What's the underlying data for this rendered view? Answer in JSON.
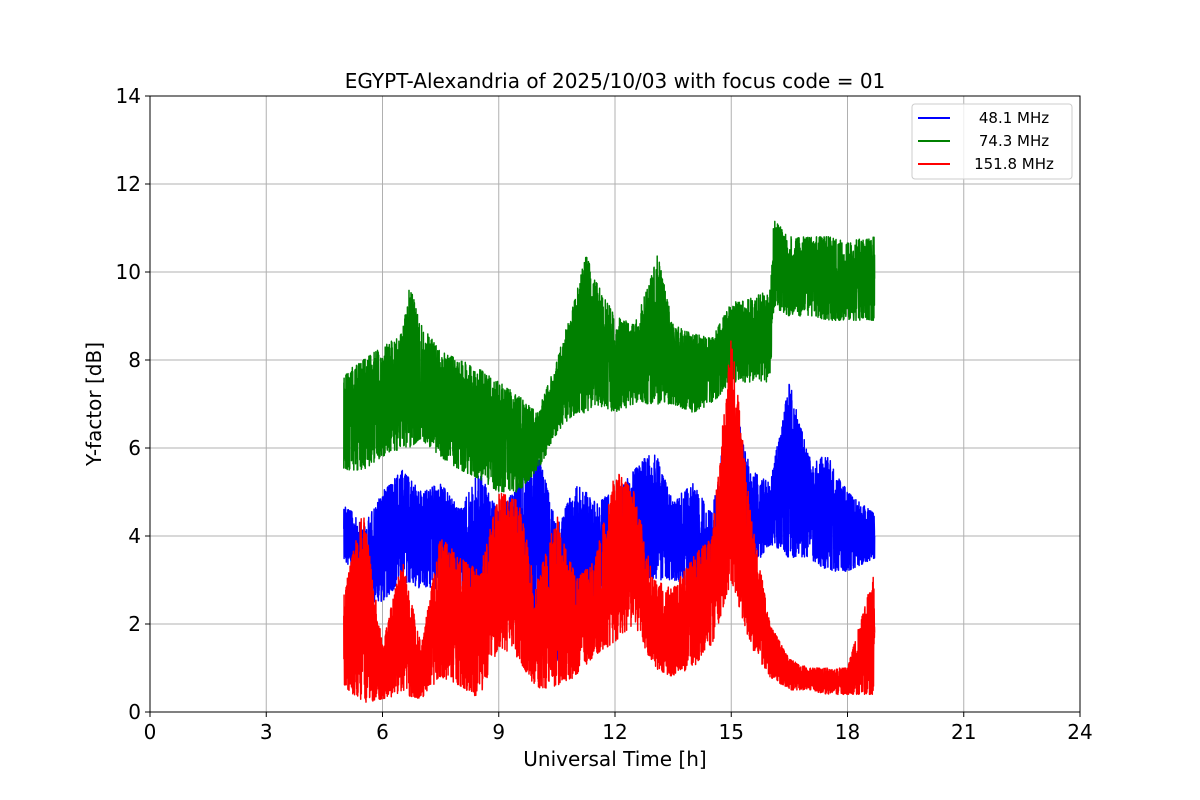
{
  "chart_data": {
    "type": "line",
    "title": "EGYPT-Alexandria of 2025/10/03 with focus code = 01",
    "xlabel": "Universal Time [h]",
    "ylabel": "Y-factor [dB]",
    "xlim": [
      0,
      24
    ],
    "ylim": [
      0,
      14
    ],
    "xticks": [
      "0",
      "3",
      "6",
      "9",
      "12",
      "15",
      "18",
      "21",
      "24"
    ],
    "yticks": [
      "0",
      "2",
      "4",
      "6",
      "8",
      "10",
      "12",
      "14"
    ],
    "grid": true,
    "legend_position": "top-right",
    "series": [
      {
        "name": "48.1 MHz",
        "color": "#0000ff",
        "envelope_t_low_high": [
          [
            5.0,
            3.5,
            4.8
          ],
          [
            5.5,
            2.5,
            4.2
          ],
          [
            6.0,
            2.5,
            5.0
          ],
          [
            6.5,
            3.0,
            5.5
          ],
          [
            7.0,
            2.8,
            5.0
          ],
          [
            7.5,
            2.8,
            5.2
          ],
          [
            8.0,
            2.5,
            4.6
          ],
          [
            8.5,
            1.5,
            5.5
          ],
          [
            9.0,
            2.0,
            4.5
          ],
          [
            9.5,
            2.2,
            5.2
          ],
          [
            10.0,
            1.8,
            6.0
          ],
          [
            10.5,
            1.0,
            4.2
          ],
          [
            11.0,
            2.0,
            5.2
          ],
          [
            11.5,
            2.5,
            4.8
          ],
          [
            12.0,
            2.8,
            5.0
          ],
          [
            12.5,
            3.0,
            5.5
          ],
          [
            13.0,
            3.0,
            6.0
          ],
          [
            13.5,
            3.0,
            4.8
          ],
          [
            14.0,
            2.8,
            5.2
          ],
          [
            14.5,
            3.0,
            4.5
          ],
          [
            15.0,
            3.5,
            7.3
          ],
          [
            15.5,
            3.2,
            5.5
          ],
          [
            16.0,
            3.8,
            5.2
          ],
          [
            16.5,
            3.5,
            7.5
          ],
          [
            17.0,
            3.5,
            5.8
          ],
          [
            17.5,
            3.2,
            5.8
          ],
          [
            18.0,
            3.2,
            5.0
          ],
          [
            18.7,
            3.5,
            4.5
          ]
        ]
      },
      {
        "name": "74.3 MHz",
        "color": "#008000",
        "envelope_t_low_high": [
          [
            5.0,
            5.5,
            7.7
          ],
          [
            5.5,
            5.5,
            8.0
          ],
          [
            6.0,
            5.8,
            8.3
          ],
          [
            6.5,
            6.0,
            8.6
          ],
          [
            6.7,
            6.0,
            9.7
          ],
          [
            7.0,
            6.2,
            8.8
          ],
          [
            7.5,
            5.8,
            8.2
          ],
          [
            8.0,
            5.5,
            8.0
          ],
          [
            8.5,
            5.3,
            7.8
          ],
          [
            9.0,
            5.0,
            7.5
          ],
          [
            9.5,
            5.0,
            7.2
          ],
          [
            10.0,
            5.5,
            6.8
          ],
          [
            10.5,
            6.3,
            8.0
          ],
          [
            11.0,
            6.8,
            9.5
          ],
          [
            11.25,
            6.8,
            10.4
          ],
          [
            11.5,
            7.0,
            9.8
          ],
          [
            12.0,
            6.8,
            9.0
          ],
          [
            12.5,
            7.0,
            8.8
          ],
          [
            13.1,
            7.0,
            10.4
          ],
          [
            13.5,
            7.0,
            8.8
          ],
          [
            14.0,
            6.8,
            8.6
          ],
          [
            14.5,
            7.0,
            8.5
          ],
          [
            15.0,
            7.5,
            9.3
          ],
          [
            15.5,
            7.5,
            9.4
          ],
          [
            16.0,
            7.5,
            9.6
          ],
          [
            16.1,
            9.2,
            11.2
          ],
          [
            16.5,
            9.0,
            10.8
          ],
          [
            17.0,
            9.0,
            10.8
          ],
          [
            17.5,
            8.9,
            10.8
          ],
          [
            18.0,
            8.9,
            10.7
          ],
          [
            18.7,
            8.9,
            10.8
          ]
        ]
      },
      {
        "name": "151.8 MHz",
        "color": "#ff0000",
        "envelope_t_low_high": [
          [
            5.0,
            0.6,
            2.7
          ],
          [
            5.5,
            0.2,
            4.6
          ],
          [
            6.0,
            0.3,
            1.5
          ],
          [
            6.5,
            0.4,
            3.5
          ],
          [
            7.0,
            0.3,
            1.5
          ],
          [
            7.5,
            0.8,
            4.0
          ],
          [
            8.0,
            0.6,
            3.5
          ],
          [
            8.5,
            0.3,
            3.2
          ],
          [
            9.0,
            1.5,
            5.0
          ],
          [
            9.5,
            1.2,
            4.8
          ],
          [
            10.0,
            0.5,
            3.0
          ],
          [
            10.5,
            0.6,
            4.5
          ],
          [
            11.0,
            0.8,
            3.0
          ],
          [
            11.5,
            1.3,
            3.5
          ],
          [
            12.0,
            1.6,
            5.5
          ],
          [
            12.5,
            2.0,
            5.0
          ],
          [
            13.0,
            1.0,
            3.0
          ],
          [
            13.5,
            0.8,
            2.8
          ],
          [
            14.0,
            1.0,
            3.5
          ],
          [
            14.5,
            1.5,
            4.0
          ],
          [
            15.0,
            3.0,
            8.6
          ],
          [
            15.5,
            1.5,
            4.5
          ],
          [
            16.0,
            0.8,
            2.0
          ],
          [
            16.5,
            0.5,
            1.2
          ],
          [
            17.0,
            0.5,
            1.0
          ],
          [
            17.5,
            0.4,
            1.0
          ],
          [
            18.0,
            0.4,
            1.0
          ],
          [
            18.7,
            0.4,
            3.2
          ]
        ]
      }
    ]
  }
}
